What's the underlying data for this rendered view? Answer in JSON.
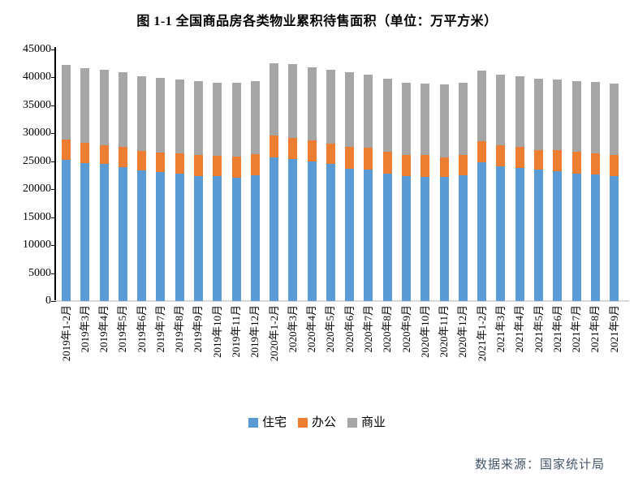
{
  "title": "图 1-1 全国商品房各类物业累积待售面积（单位：万平方米）",
  "source": "数据来源：国家统计局",
  "colors": {
    "residential": "#5B9BD5",
    "office": "#ED7D31",
    "commercial": "#A6A6A6",
    "axis": "#000000",
    "baseline": "#D9D9D9",
    "source_text": "#44546A"
  },
  "chart_data": {
    "type": "bar",
    "stacked": true,
    "title": "图 1-1 全国商品房各类物业累积待售面积（单位：万平方米）",
    "xlabel": "",
    "ylabel": "",
    "ylim": [
      0,
      45000
    ],
    "ytick_step": 5000,
    "grid": false,
    "legend_position": "bottom",
    "categories": [
      "2019年1-2月",
      "2019年3月",
      "2019年4月",
      "2019年5月",
      "2019年6月",
      "2019年7月",
      "2019年8月",
      "2019年9月",
      "2019年10月",
      "2019年11月",
      "2019年12月",
      "2020年1-2月",
      "2020年3月",
      "2020年4月",
      "2020年5月",
      "2020年6月",
      "2020年7月",
      "2020年8月",
      "2020年9月",
      "2020年10月",
      "2020年11月",
      "2020年12月",
      "2021年1-2月",
      "2021年3月",
      "2021年4月",
      "2021年5月",
      "2021年6月",
      "2021年7月",
      "2021年8月",
      "2021年9月"
    ],
    "series": [
      {
        "id": "residential",
        "name": "住宅",
        "color": "#5B9BD5",
        "values": [
          25250,
          24750,
          24500,
          24000,
          23350,
          23050,
          22850,
          22400,
          22300,
          22100,
          22500,
          25700,
          25350,
          24900,
          24500,
          23700,
          23550,
          22850,
          22320,
          22230,
          22230,
          22450,
          24800,
          24100,
          23750,
          23550,
          23200,
          22850,
          22700,
          22300
        ]
      },
      {
        "id": "office",
        "name": "办公",
        "color": "#ED7D31",
        "values": [
          3700,
          3620,
          3400,
          3550,
          3460,
          3530,
          3580,
          3690,
          3690,
          3700,
          3730,
          3860,
          3780,
          3850,
          3720,
          3940,
          3840,
          3870,
          3750,
          3850,
          3500,
          3650,
          3800,
          3780,
          3790,
          3510,
          3760,
          3820,
          3680,
          3890
        ]
      },
      {
        "id": "commercial",
        "name": "商业",
        "color": "#A6A6A6",
        "values": [
          13350,
          13340,
          13520,
          13450,
          13440,
          13320,
          13270,
          13210,
          13110,
          13200,
          13170,
          13040,
          13270,
          13050,
          13080,
          13290,
          13040,
          13050,
          13000,
          12810,
          13040,
          13000,
          12610,
          12610,
          12660,
          12750,
          12710,
          12660,
          12810,
          12650
        ]
      }
    ]
  }
}
